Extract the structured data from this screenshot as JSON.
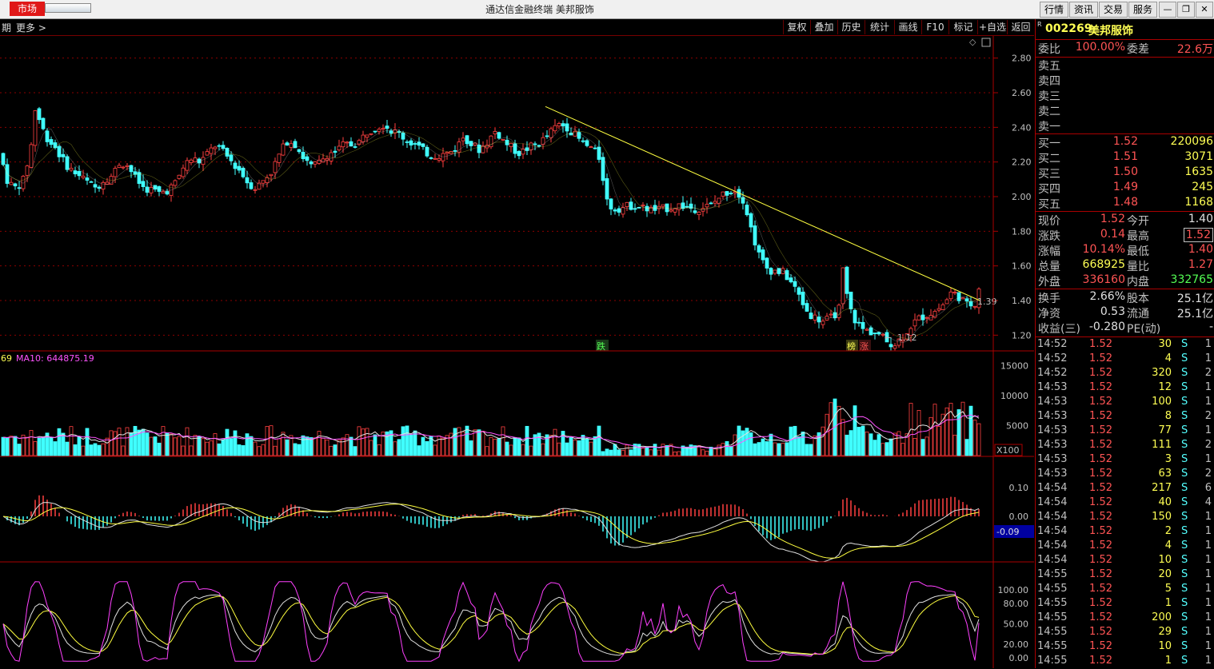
{
  "window": {
    "market_tab": "市场",
    "title": "通达信金融终端  美邦服饰",
    "menu_buttons": [
      "行情",
      "资讯",
      "交易",
      "服务"
    ],
    "win_controls": [
      "minimize",
      "restore",
      "close"
    ]
  },
  "toolbar": {
    "left_labels": [
      "期",
      "更多 >"
    ],
    "buttons": [
      "复权",
      "叠加",
      "历史",
      "统计",
      "画线",
      "F10",
      "标记",
      "+自选",
      "返回"
    ]
  },
  "price_chart": {
    "y_ticks": [
      "2.80",
      "2.60",
      "2.40",
      "2.20",
      "2.00",
      "1.80",
      "1.60",
      "1.40",
      "1.20"
    ],
    "high_low_notes": [
      "1.39",
      "1.12"
    ],
    "markers": [
      {
        "text": "跌",
        "color": "#54ff54"
      },
      {
        "text": "榜",
        "color": "#ffff54"
      },
      {
        "text": "涨",
        "color": "#ff5454"
      }
    ],
    "colors": {
      "up": "#ff4040",
      "down": "#40ffff",
      "trendline": "#ffff40",
      "grid": "#8b0000"
    }
  },
  "volume_panel": {
    "legend_prefix": "69",
    "legend_ma": "MA10: 644875.19",
    "y_ticks": [
      "15000",
      "10000",
      "5000"
    ],
    "unit": "X100"
  },
  "macd_panel": {
    "y_ticks": [
      "0.10",
      "0.00"
    ],
    "current_value": "-0.09"
  },
  "kdj_panel": {
    "y_ticks": [
      "100.00",
      "80.00",
      "50.00",
      "20.00",
      "0.00"
    ]
  },
  "quote": {
    "code": "002269",
    "name": "美邦服饰",
    "flag": "R",
    "weibi_label": "委比",
    "weibi_value": "100.00%",
    "weicha_label": "委差",
    "weicha_value": "22.6万",
    "sell": [
      {
        "label": "卖五"
      },
      {
        "label": "卖四"
      },
      {
        "label": "卖三"
      },
      {
        "label": "卖二"
      },
      {
        "label": "卖一"
      }
    ],
    "buy": [
      {
        "label": "买一",
        "price": "1.52",
        "vol": "220096"
      },
      {
        "label": "买二",
        "price": "1.51",
        "vol": "3071"
      },
      {
        "label": "买三",
        "price": "1.50",
        "vol": "1635"
      },
      {
        "label": "买四",
        "price": "1.49",
        "vol": "245"
      },
      {
        "label": "买五",
        "price": "1.48",
        "vol": "1168"
      }
    ],
    "stats": [
      {
        "l1": "现价",
        "v1": "1.52",
        "c1": "#ff5454",
        "l2": "今开",
        "v2": "1.40",
        "c2": "#e0e0e0"
      },
      {
        "l1": "涨跌",
        "v1": "0.14",
        "c1": "#ff5454",
        "l2": "最高",
        "v2": "1.52",
        "c2": "#ff5454"
      },
      {
        "l1": "涨幅",
        "v1": "10.14%",
        "c1": "#ff5454",
        "l2": "最低",
        "v2": "1.40",
        "c2": "#ff5454"
      },
      {
        "l1": "总量",
        "v1": "668925",
        "c1": "#ffff54",
        "l2": "量比",
        "v2": "1.27",
        "c2": "#ff5454"
      },
      {
        "l1": "外盘",
        "v1": "336160",
        "c1": "#ff5454",
        "l2": "内盘",
        "v2": "332765",
        "c2": "#54ff54"
      }
    ],
    "stats2": [
      {
        "l1": "换手",
        "v1": "2.66%",
        "l2": "股本",
        "v2": "25.1亿"
      },
      {
        "l1": "净资",
        "v1": "0.53",
        "l2": "流通",
        "v2": "25.1亿"
      },
      {
        "l1": "收益(三)",
        "v1": "-0.280",
        "l2": "PE(动)",
        "v2": "-"
      }
    ],
    "trades": [
      {
        "t": "14:52",
        "p": "1.52",
        "v": "30",
        "bs": "S",
        "n": "1"
      },
      {
        "t": "14:52",
        "p": "1.52",
        "v": "4",
        "bs": "S",
        "n": "1"
      },
      {
        "t": "14:52",
        "p": "1.52",
        "v": "320",
        "bs": "S",
        "n": "2"
      },
      {
        "t": "14:53",
        "p": "1.52",
        "v": "12",
        "bs": "S",
        "n": "1"
      },
      {
        "t": "14:53",
        "p": "1.52",
        "v": "100",
        "bs": "S",
        "n": "1"
      },
      {
        "t": "14:53",
        "p": "1.52",
        "v": "8",
        "bs": "S",
        "n": "2"
      },
      {
        "t": "14:53",
        "p": "1.52",
        "v": "77",
        "bs": "S",
        "n": "1"
      },
      {
        "t": "14:53",
        "p": "1.52",
        "v": "111",
        "bs": "S",
        "n": "2"
      },
      {
        "t": "14:53",
        "p": "1.52",
        "v": "3",
        "bs": "S",
        "n": "1"
      },
      {
        "t": "14:53",
        "p": "1.52",
        "v": "63",
        "bs": "S",
        "n": "2"
      },
      {
        "t": "14:54",
        "p": "1.52",
        "v": "217",
        "bs": "S",
        "n": "6"
      },
      {
        "t": "14:54",
        "p": "1.52",
        "v": "40",
        "bs": "S",
        "n": "4"
      },
      {
        "t": "14:54",
        "p": "1.52",
        "v": "150",
        "bs": "S",
        "n": "1"
      },
      {
        "t": "14:54",
        "p": "1.52",
        "v": "2",
        "bs": "S",
        "n": "1"
      },
      {
        "t": "14:54",
        "p": "1.52",
        "v": "4",
        "bs": "S",
        "n": "1"
      },
      {
        "t": "14:54",
        "p": "1.52",
        "v": "10",
        "bs": "S",
        "n": "1"
      },
      {
        "t": "14:55",
        "p": "1.52",
        "v": "20",
        "bs": "S",
        "n": "1"
      },
      {
        "t": "14:55",
        "p": "1.52",
        "v": "5",
        "bs": "S",
        "n": "1"
      },
      {
        "t": "14:55",
        "p": "1.52",
        "v": "1",
        "bs": "S",
        "n": "1"
      },
      {
        "t": "14:55",
        "p": "1.52",
        "v": "200",
        "bs": "S",
        "n": "1"
      },
      {
        "t": "14:55",
        "p": "1.52",
        "v": "29",
        "bs": "S",
        "n": "1"
      },
      {
        "t": "14:55",
        "p": "1.52",
        "v": "10",
        "bs": "S",
        "n": "1"
      },
      {
        "t": "14:55",
        "p": "1.52",
        "v": "1",
        "bs": "S",
        "n": "1"
      }
    ]
  },
  "chart_data": {
    "type": "candlestick",
    "price_trend": [
      [
        0,
        2.25
      ],
      [
        10,
        2.08
      ],
      [
        20,
        2.05
      ],
      [
        30,
        2.1
      ],
      [
        40,
        2.32
      ],
      [
        45,
        2.55
      ],
      [
        50,
        2.42
      ],
      [
        60,
        2.33
      ],
      [
        70,
        2.28
      ],
      [
        80,
        2.2
      ],
      [
        90,
        2.15
      ],
      [
        100,
        2.12
      ],
      [
        110,
        2.08
      ],
      [
        120,
        2.05
      ],
      [
        130,
        2.1
      ],
      [
        140,
        2.12
      ],
      [
        150,
        2.2
      ],
      [
        160,
        2.18
      ],
      [
        170,
        2.1
      ],
      [
        180,
        2.05
      ],
      [
        190,
        2.04
      ],
      [
        200,
        2.02
      ],
      [
        210,
        2.04
      ],
      [
        220,
        2.08
      ],
      [
        230,
        2.18
      ],
      [
        240,
        2.22
      ],
      [
        250,
        2.2
      ],
      [
        260,
        2.25
      ],
      [
        270,
        2.3
      ],
      [
        280,
        2.25
      ],
      [
        290,
        2.2
      ],
      [
        300,
        2.15
      ],
      [
        310,
        2.08
      ],
      [
        320,
        2.05
      ],
      [
        330,
        2.1
      ],
      [
        340,
        2.15
      ],
      [
        350,
        2.25
      ],
      [
        360,
        2.33
      ],
      [
        370,
        2.3
      ],
      [
        380,
        2.22
      ],
      [
        390,
        2.17
      ],
      [
        400,
        2.2
      ],
      [
        410,
        2.25
      ],
      [
        420,
        2.26
      ],
      [
        430,
        2.3
      ],
      [
        440,
        2.3
      ],
      [
        450,
        2.32
      ],
      [
        460,
        2.38
      ],
      [
        470,
        2.4
      ],
      [
        480,
        2.42
      ],
      [
        490,
        2.38
      ],
      [
        500,
        2.36
      ],
      [
        510,
        2.32
      ],
      [
        520,
        2.3
      ],
      [
        530,
        2.26
      ],
      [
        540,
        2.24
      ],
      [
        550,
        2.24
      ],
      [
        560,
        2.25
      ],
      [
        570,
        2.28
      ],
      [
        580,
        2.35
      ],
      [
        590,
        2.3
      ],
      [
        600,
        2.27
      ],
      [
        610,
        2.32
      ],
      [
        620,
        2.38
      ],
      [
        630,
        2.32
      ],
      [
        640,
        2.28
      ],
      [
        650,
        2.25
      ],
      [
        660,
        2.28
      ],
      [
        670,
        2.3
      ],
      [
        680,
        2.33
      ],
      [
        690,
        2.38
      ],
      [
        700,
        2.42
      ],
      [
        710,
        2.4
      ],
      [
        720,
        2.35
      ],
      [
        730,
        2.3
      ],
      [
        740,
        2.28
      ],
      [
        750,
        2.22
      ],
      [
        760,
        1.95
      ],
      [
        770,
        1.93
      ],
      [
        780,
        1.94
      ],
      [
        790,
        1.95
      ],
      [
        800,
        1.94
      ],
      [
        810,
        1.93
      ],
      [
        820,
        1.92
      ],
      [
        830,
        1.93
      ],
      [
        840,
        1.94
      ],
      [
        850,
        1.95
      ],
      [
        860,
        1.94
      ],
      [
        870,
        1.93
      ],
      [
        880,
        1.94
      ],
      [
        890,
        1.95
      ],
      [
        900,
        2.0
      ],
      [
        910,
        2.03
      ],
      [
        920,
        2.04
      ],
      [
        930,
        1.98
      ],
      [
        940,
        1.8
      ],
      [
        950,
        1.65
      ],
      [
        960,
        1.58
      ],
      [
        970,
        1.57
      ],
      [
        980,
        1.56
      ],
      [
        990,
        1.5
      ],
      [
        1000,
        1.42
      ],
      [
        1010,
        1.33
      ],
      [
        1020,
        1.3
      ],
      [
        1030,
        1.28
      ],
      [
        1040,
        1.3
      ],
      [
        1050,
        1.36
      ],
      [
        1055,
        1.62
      ],
      [
        1060,
        1.38
      ],
      [
        1070,
        1.28
      ],
      [
        1080,
        1.23
      ],
      [
        1090,
        1.22
      ],
      [
        1100,
        1.2
      ],
      [
        1110,
        1.16
      ],
      [
        1120,
        1.15
      ],
      [
        1130,
        1.2
      ],
      [
        1140,
        1.26
      ],
      [
        1150,
        1.3
      ],
      [
        1160,
        1.32
      ],
      [
        1170,
        1.34
      ],
      [
        1180,
        1.38
      ],
      [
        1190,
        1.45
      ],
      [
        1200,
        1.42
      ],
      [
        1210,
        1.37
      ],
      [
        1220,
        1.39
      ],
      [
        1225,
        1.5
      ]
    ],
    "trendline": [
      [
        682,
        2.52
      ],
      [
        1225,
        1.4
      ]
    ],
    "y_range": [
      1.1,
      2.9
    ]
  }
}
